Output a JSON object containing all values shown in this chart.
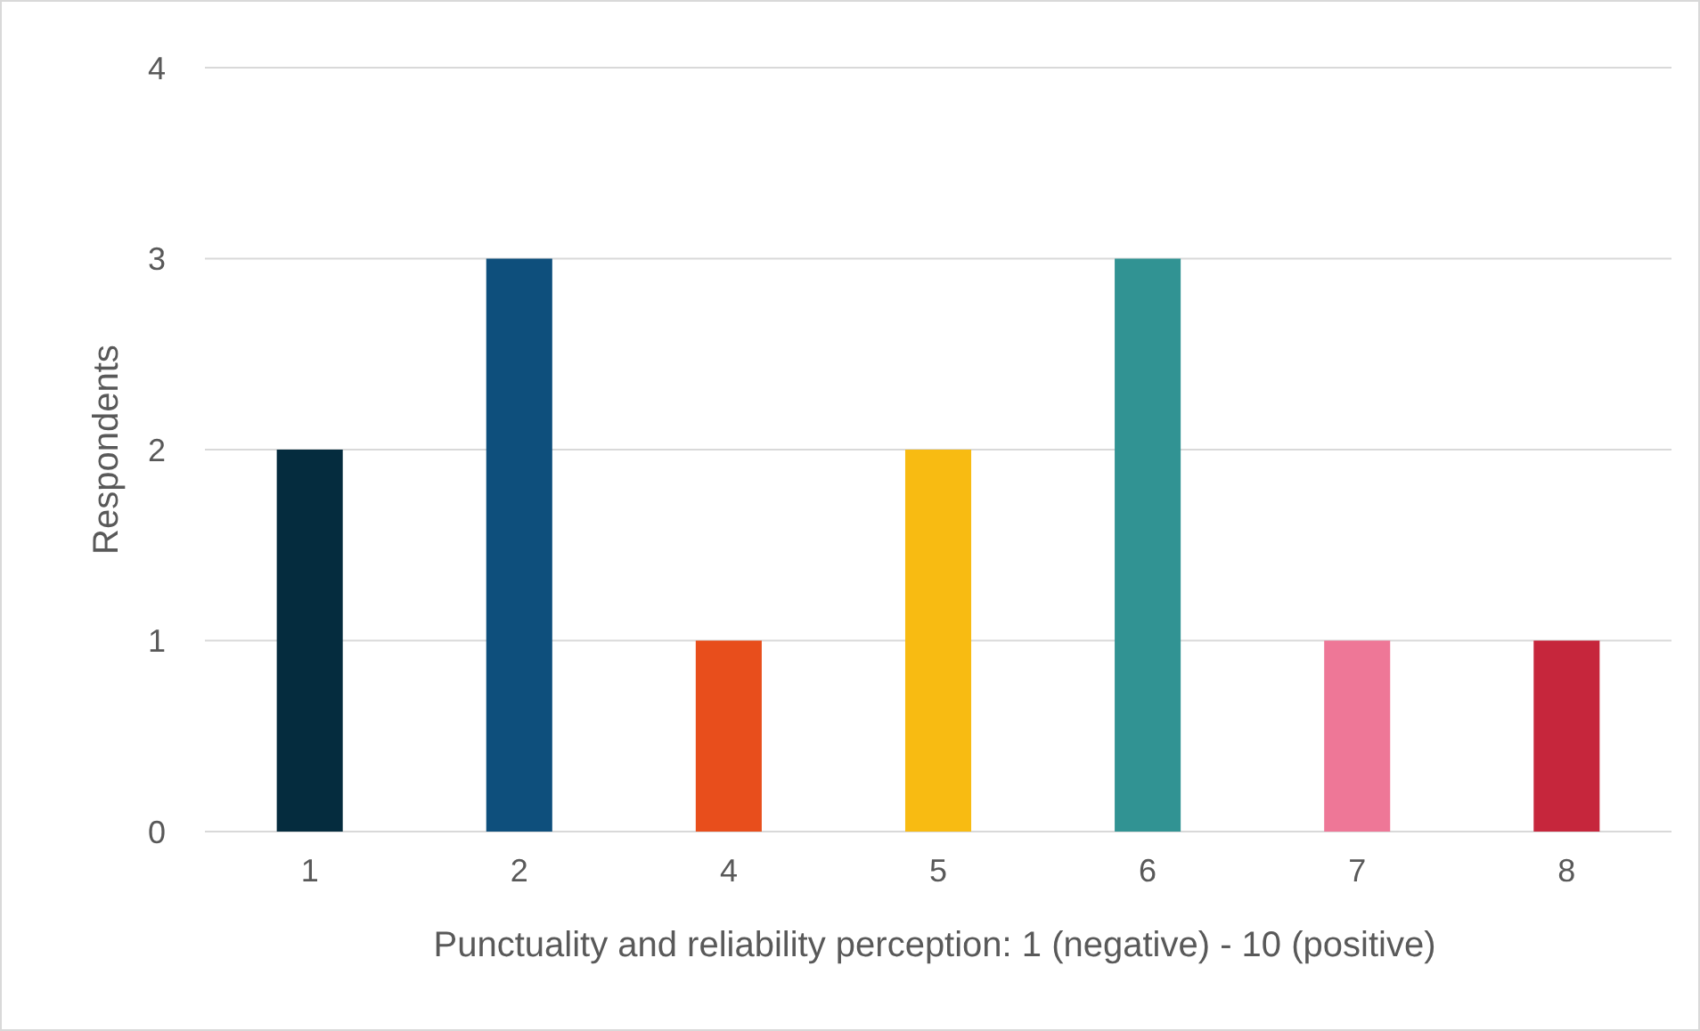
{
  "chart_data": {
    "type": "bar",
    "xlabel": "Punctuality and reliability perception: 1 (negative) - 10 (positive)",
    "ylabel": "Respondents",
    "categories": [
      "1",
      "2",
      "4",
      "5",
      "6",
      "7",
      "8"
    ],
    "values": [
      2,
      3,
      1,
      2,
      3,
      1,
      1
    ],
    "colors": [
      "#052c3e",
      "#0e4f7c",
      "#e84e1c",
      "#f8bb12",
      "#319393",
      "#ee7797",
      "#c6263c"
    ],
    "ylim": [
      0,
      4
    ],
    "yticks": [
      0,
      1,
      2,
      3,
      4
    ],
    "grid": "y"
  }
}
